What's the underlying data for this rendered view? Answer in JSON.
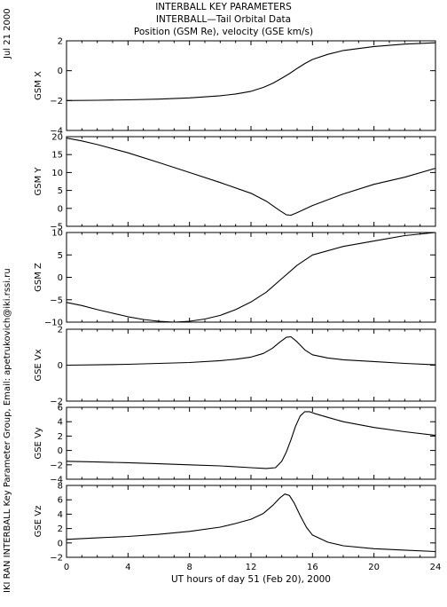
{
  "titles": [
    "INTERBALL KEY PARAMETERS",
    "INTERBALL—Tail Orbital Data",
    "Position (GSM Re), velocity (GSE km/s)"
  ],
  "date_stamp": "Jul 21 2000",
  "credit": "IKI RAN INTERBALL Key Parameter Group, Email: apetrukovich@iki.rssi.ru",
  "chart_data": [
    {
      "type": "line",
      "ylabel": "GSM X",
      "ylim": [
        -4,
        2
      ],
      "yticks": [
        {
          "v": 2,
          "t": "2"
        },
        {
          "v": 0,
          "t": "0"
        },
        {
          "v": -2,
          "t": "−2"
        },
        {
          "v": -4,
          "t": "−4"
        }
      ],
      "xlim": [
        0,
        24
      ],
      "xticks": [
        0,
        4,
        8,
        12,
        16,
        20,
        24
      ],
      "show_xticklabels": false,
      "x": [
        0,
        2,
        4,
        6,
        8,
        10,
        11,
        12,
        12.8,
        13.4,
        14,
        14.5,
        15,
        15.5,
        16,
        17,
        18,
        20,
        22,
        24
      ],
      "y": [
        -2.0,
        -1.98,
        -1.95,
        -1.9,
        -1.82,
        -1.68,
        -1.56,
        -1.38,
        -1.12,
        -0.85,
        -0.5,
        -0.2,
        0.15,
        0.48,
        0.75,
        1.1,
        1.35,
        1.62,
        1.78,
        1.87
      ]
    },
    {
      "type": "line",
      "ylabel": "GSM Y",
      "ylim": [
        -5,
        20
      ],
      "yticks": [
        {
          "v": 20,
          "t": "20"
        },
        {
          "v": 15,
          "t": "15"
        },
        {
          "v": 10,
          "t": "10"
        },
        {
          "v": 5,
          "t": "5"
        },
        {
          "v": 0,
          "t": "0"
        },
        {
          "v": -5,
          "t": "−5"
        }
      ],
      "xlim": [
        0,
        24
      ],
      "xticks": [
        0,
        4,
        8,
        12,
        16,
        20,
        24
      ],
      "show_xticklabels": false,
      "x": [
        0,
        1,
        2,
        4,
        6,
        8,
        10,
        12,
        13,
        13.8,
        14.3,
        14.6,
        15,
        16,
        18,
        20,
        22,
        24
      ],
      "y": [
        19.6,
        18.8,
        17.8,
        15.5,
        12.8,
        10.0,
        7.2,
        4.2,
        2.0,
        -0.4,
        -1.8,
        -1.9,
        -1.2,
        0.8,
        4.0,
        6.7,
        8.7,
        11.2
      ]
    },
    {
      "type": "line",
      "ylabel": "GSM Z",
      "ylim": [
        -10,
        10
      ],
      "yticks": [
        {
          "v": 10,
          "t": "10"
        },
        {
          "v": 5,
          "t": "5"
        },
        {
          "v": 0,
          "t": "0"
        },
        {
          "v": -5,
          "t": "−5"
        },
        {
          "v": -10,
          "t": "−10"
        }
      ],
      "xlim": [
        0,
        24
      ],
      "xticks": [
        0,
        4,
        8,
        12,
        16,
        20,
        24
      ],
      "show_xticklabels": false,
      "x": [
        0,
        1,
        2,
        3,
        4,
        5,
        6,
        7,
        8,
        9,
        10,
        11,
        12,
        13,
        14,
        15,
        16,
        18,
        20,
        22,
        24
      ],
      "y": [
        -5.6,
        -6.3,
        -7.2,
        -8.0,
        -8.8,
        -9.4,
        -9.8,
        -10.0,
        -9.8,
        -9.3,
        -8.5,
        -7.2,
        -5.5,
        -3.3,
        -0.3,
        2.7,
        5.0,
        6.9,
        8.1,
        9.3,
        10.0
      ]
    },
    {
      "type": "line",
      "ylabel": "GSE Vx",
      "ylim": [
        -2,
        2
      ],
      "yticks": [
        {
          "v": 2,
          "t": "2"
        },
        {
          "v": 0,
          "t": "0"
        },
        {
          "v": -2,
          "t": "−2"
        }
      ],
      "xlim": [
        0,
        24
      ],
      "xticks": [
        0,
        4,
        8,
        12,
        16,
        20,
        24
      ],
      "show_xticklabels": false,
      "x": [
        0,
        2,
        4,
        6,
        8,
        10,
        11,
        12,
        12.8,
        13.4,
        13.9,
        14.3,
        14.6,
        15,
        15.5,
        16,
        17,
        18,
        20,
        22,
        24
      ],
      "y": [
        0.0,
        0.02,
        0.05,
        0.1,
        0.15,
        0.25,
        0.33,
        0.45,
        0.65,
        0.95,
        1.3,
        1.55,
        1.58,
        1.3,
        0.85,
        0.58,
        0.4,
        0.3,
        0.2,
        0.1,
        0.02
      ]
    },
    {
      "type": "line",
      "ylabel": "GSE Vy",
      "ylim": [
        -4,
        6
      ],
      "yticks": [
        {
          "v": 6,
          "t": "6"
        },
        {
          "v": 4,
          "t": "4"
        },
        {
          "v": 2,
          "t": "2"
        },
        {
          "v": 0,
          "t": "0"
        },
        {
          "v": -2,
          "t": "−2"
        },
        {
          "v": -4,
          "t": "−4"
        }
      ],
      "xlim": [
        0,
        24
      ],
      "xticks": [
        0,
        4,
        8,
        12,
        16,
        20,
        24
      ],
      "show_xticklabels": false,
      "x": [
        0,
        2,
        4,
        6,
        8,
        10,
        12,
        13,
        13.6,
        14.0,
        14.3,
        14.6,
        14.9,
        15.2,
        15.5,
        15.8,
        16.2,
        17,
        18,
        20,
        22,
        24
      ],
      "y": [
        -1.5,
        -1.6,
        -1.7,
        -1.85,
        -2.0,
        -2.15,
        -2.4,
        -2.5,
        -2.4,
        -1.5,
        -0.2,
        1.5,
        3.4,
        4.8,
        5.4,
        5.4,
        5.1,
        4.6,
        4.0,
        3.2,
        2.6,
        2.1
      ]
    },
    {
      "type": "line",
      "ylabel": "GSE Vz",
      "ylim": [
        -2,
        8
      ],
      "yticks": [
        {
          "v": 8,
          "t": "8"
        },
        {
          "v": 6,
          "t": "6"
        },
        {
          "v": 4,
          "t": "4"
        },
        {
          "v": 2,
          "t": "2"
        },
        {
          "v": 0,
          "t": "0"
        },
        {
          "v": -2,
          "t": "−2"
        }
      ],
      "xlim": [
        0,
        24
      ],
      "xticks": [
        0,
        4,
        8,
        12,
        16,
        20,
        24
      ],
      "show_xticklabels": true,
      "xticklabels": [
        "0",
        "4",
        "8",
        "12",
        "16",
        "20",
        "24"
      ],
      "xlabel": "UT hours of day  51 (Feb 20), 2000",
      "x": [
        0,
        2,
        4,
        6,
        8,
        10,
        11,
        12,
        12.8,
        13.4,
        13.9,
        14.2,
        14.5,
        14.8,
        15.2,
        15.6,
        16,
        17,
        18,
        20,
        22,
        24
      ],
      "y": [
        0.5,
        0.7,
        0.9,
        1.2,
        1.6,
        2.2,
        2.7,
        3.3,
        4.1,
        5.2,
        6.3,
        6.8,
        6.6,
        5.6,
        3.8,
        2.2,
        1.1,
        0.1,
        -0.4,
        -0.8,
        -1.0,
        -1.2
      ]
    }
  ]
}
